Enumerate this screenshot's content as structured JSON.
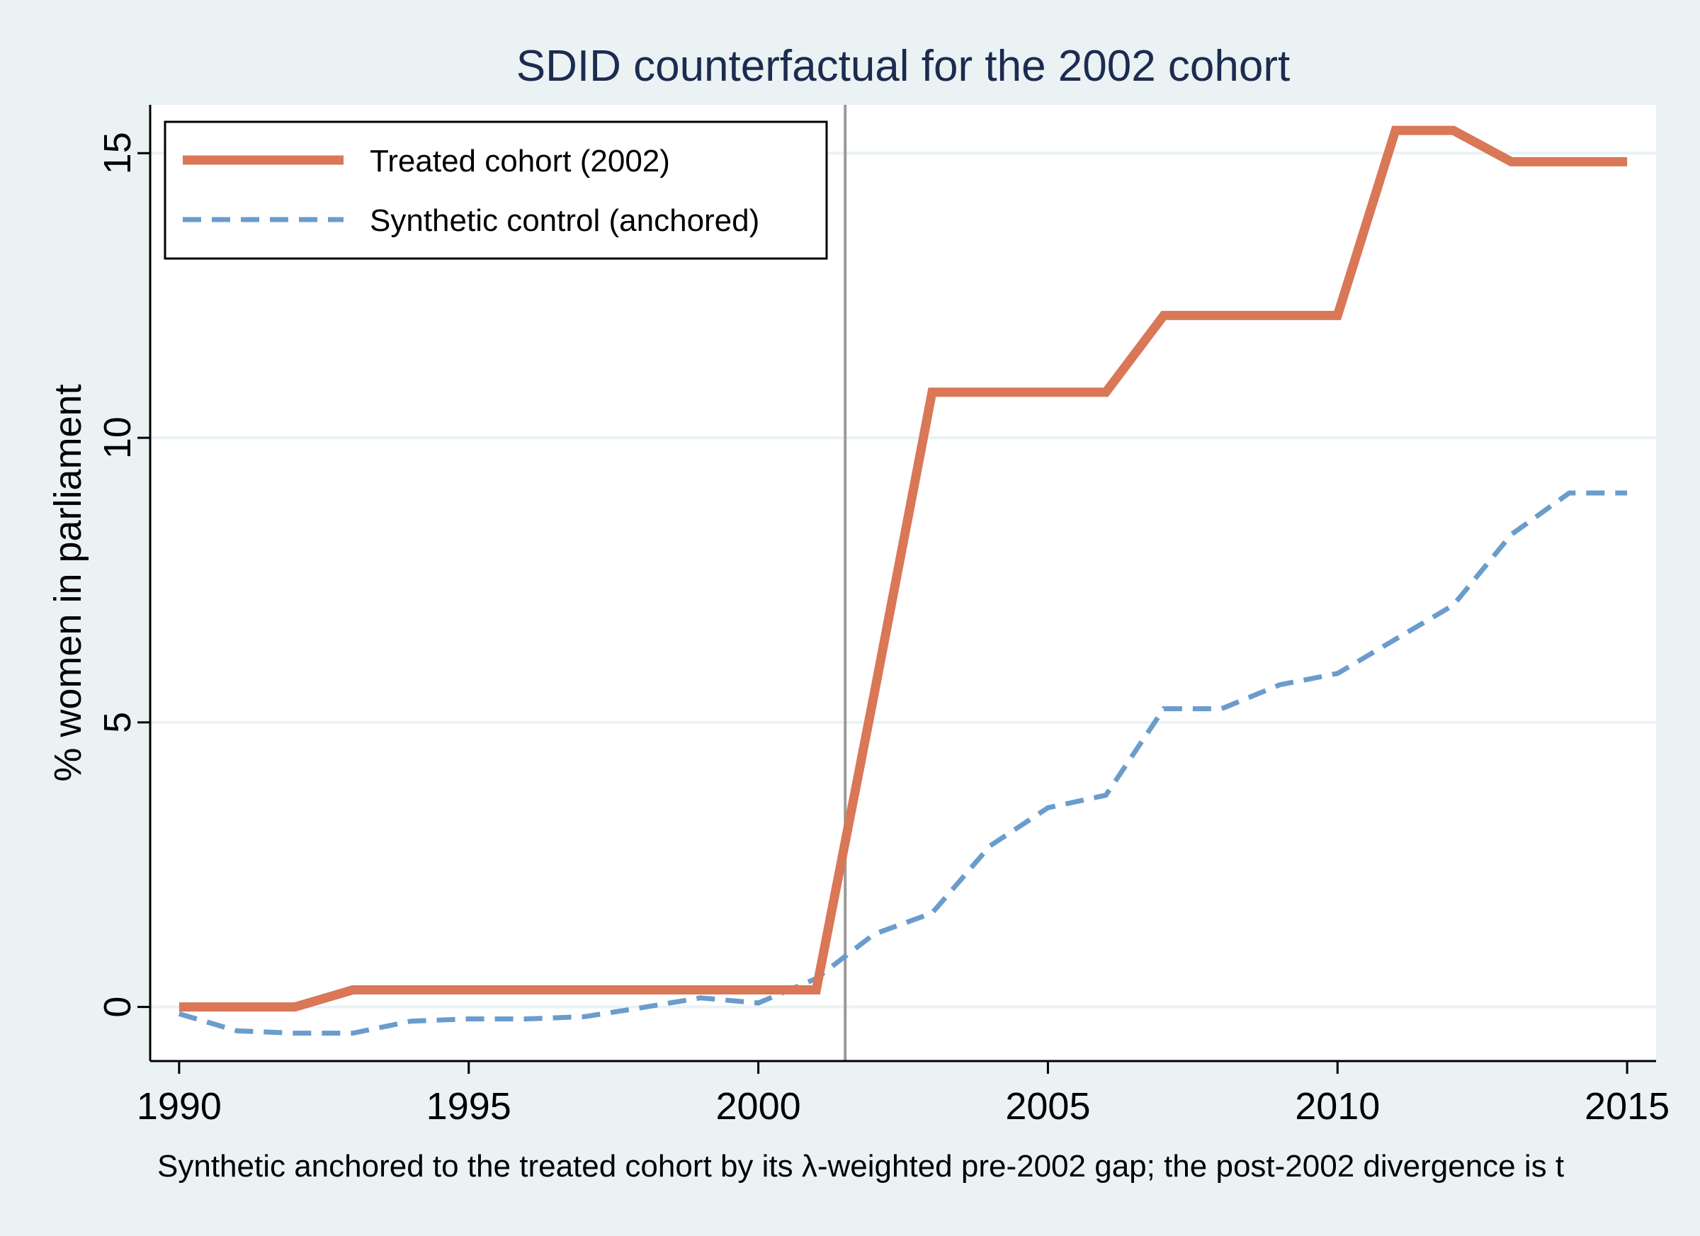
{
  "chart_data": {
    "type": "line",
    "title": "SDID counterfactual for the 2002 cohort",
    "xlabel": "",
    "ylabel": "% women in parliament",
    "caption": "Synthetic anchored to the treated cohort by its λ-weighted pre-2002 gap; the post-2002 divergence is t",
    "xlim": [
      1989.5,
      2015.5
    ],
    "ylim": [
      -0.95,
      15.85
    ],
    "x_ticks": [
      "1990",
      "1995",
      "2000",
      "2005",
      "2010",
      "2015"
    ],
    "y_ticks": [
      "0",
      "5",
      "10",
      "15"
    ],
    "reference_line_x": 2001.5,
    "grid": true,
    "legend_position": "top-left",
    "x": [
      1990,
      1991,
      1992,
      1993,
      1994,
      1995,
      1996,
      1997,
      1998,
      1999,
      2000,
      2001,
      2002,
      2003,
      2004,
      2005,
      2006,
      2007,
      2008,
      2009,
      2010,
      2011,
      2012,
      2013,
      2014,
      2015
    ],
    "series": [
      {
        "name": "Treated cohort (2002)",
        "color": "#d97757",
        "style": "solid",
        "values": [
          0,
          0,
          0,
          0.3,
          0.3,
          0.3,
          0.3,
          0.3,
          0.3,
          0.3,
          0.3,
          0.3,
          5.5,
          10.8,
          10.8,
          10.8,
          10.8,
          12.15,
          12.15,
          12.15,
          12.15,
          15.4,
          15.4,
          14.85,
          14.85,
          14.85
        ]
      },
      {
        "name": "Synthetic control (anchored)",
        "color": "#6a9ccc",
        "style": "dashed",
        "values": [
          -0.12,
          -0.42,
          -0.46,
          -0.46,
          -0.25,
          -0.21,
          -0.21,
          -0.17,
          -0.01,
          0.16,
          0.07,
          0.5,
          1.28,
          1.65,
          2.83,
          3.5,
          3.72,
          5.24,
          5.24,
          5.66,
          5.86,
          6.46,
          7.06,
          8.3,
          9.03,
          9.03
        ]
      }
    ]
  }
}
